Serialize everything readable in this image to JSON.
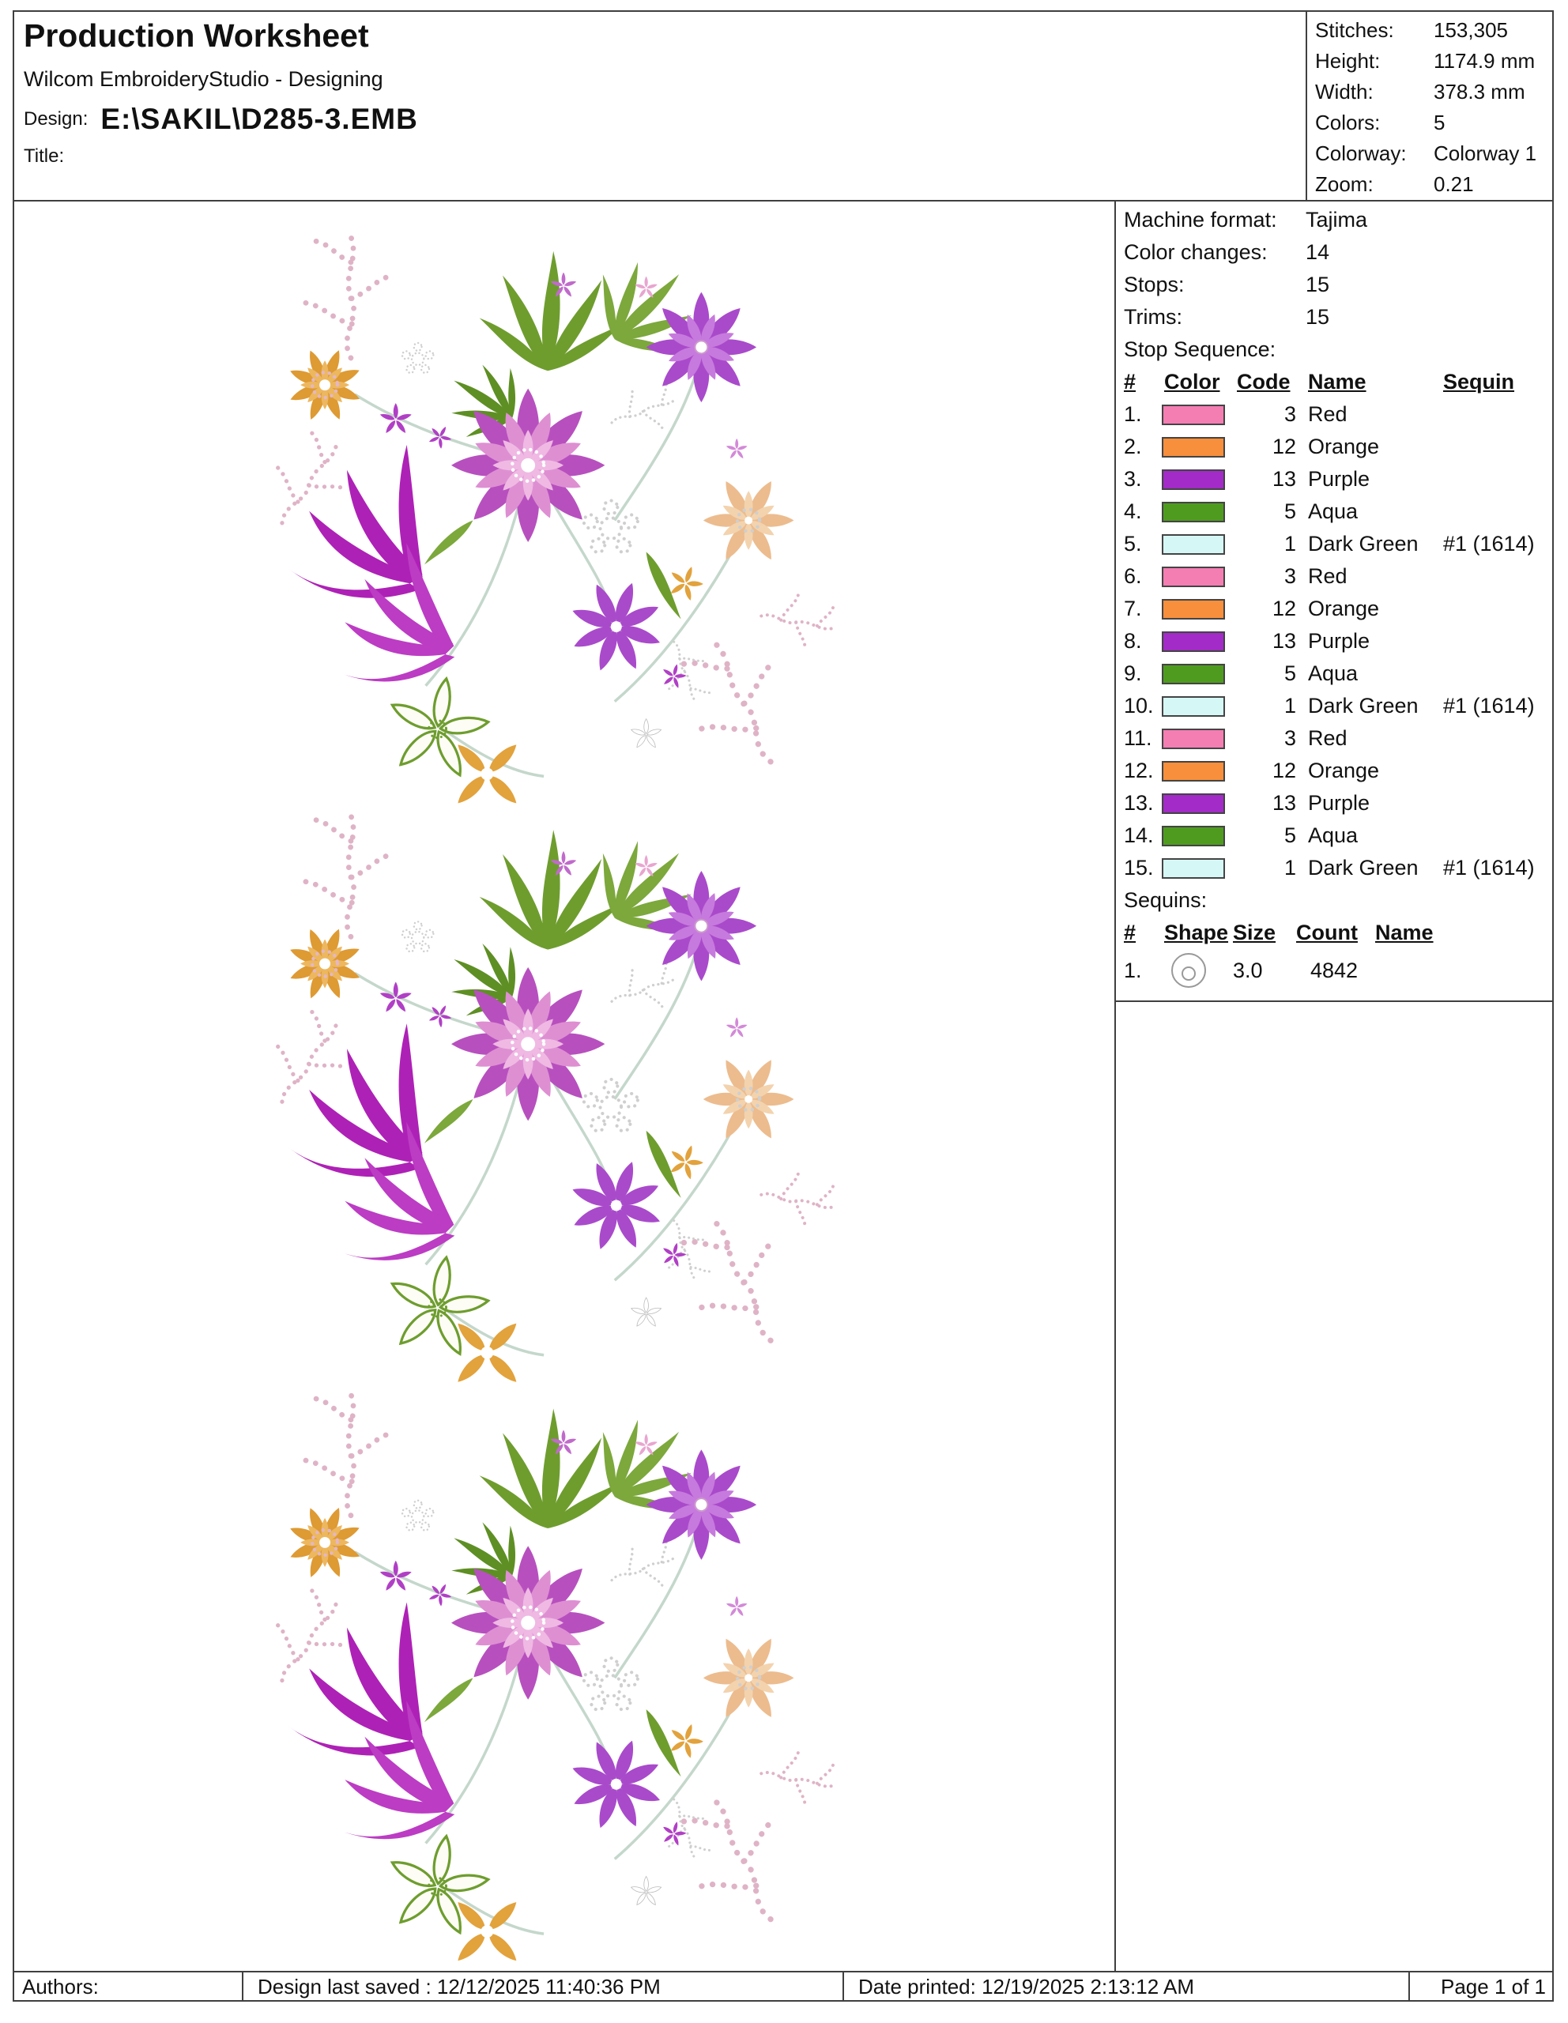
{
  "header": {
    "title": "Production Worksheet",
    "subtitle": "Wilcom EmbroideryStudio - Designing",
    "design_label": "Design:",
    "design_path": "E:\\SAKIL\\D285-3.EMB",
    "title_label": "Title:"
  },
  "summary": {
    "rows": [
      {
        "label": "Stitches:",
        "value": "153,305"
      },
      {
        "label": "Height:",
        "value": "1174.9 mm"
      },
      {
        "label": "Width:",
        "value": "378.3 mm"
      },
      {
        "label": "Colors:",
        "value": "5"
      },
      {
        "label": "Colorway:",
        "value": "Colorway 1"
      },
      {
        "label": "Zoom:",
        "value": "0.21"
      }
    ]
  },
  "machine": {
    "rows": [
      {
        "label": "Machine format:",
        "value": "Tajima"
      },
      {
        "label": "Color changes:",
        "value": "14"
      },
      {
        "label": "Stops:",
        "value": "15"
      },
      {
        "label": "Trims:",
        "value": "15"
      }
    ]
  },
  "stop_sequence": {
    "title": "Stop Sequence:",
    "headers": {
      "num": "#",
      "color": "Color",
      "code": "Code",
      "name": "Name",
      "sequin": "Sequin"
    },
    "rows": [
      {
        "num": "1.",
        "color": "#F47EB2",
        "code": "3",
        "name": "Red",
        "sequin": ""
      },
      {
        "num": "2.",
        "color": "#F78F3C",
        "code": "12",
        "name": "Orange",
        "sequin": ""
      },
      {
        "num": "3.",
        "color": "#A32BC8",
        "code": "13",
        "name": "Purple",
        "sequin": ""
      },
      {
        "num": "4.",
        "color": "#4F9B1F",
        "code": "5",
        "name": "Aqua",
        "sequin": ""
      },
      {
        "num": "5.",
        "color": "#D5F8F6",
        "code": "1",
        "name": "Dark Green",
        "sequin": "#1 (1614)"
      },
      {
        "num": "6.",
        "color": "#F47EB2",
        "code": "3",
        "name": "Red",
        "sequin": ""
      },
      {
        "num": "7.",
        "color": "#F78F3C",
        "code": "12",
        "name": "Orange",
        "sequin": ""
      },
      {
        "num": "8.",
        "color": "#A32BC8",
        "code": "13",
        "name": "Purple",
        "sequin": ""
      },
      {
        "num": "9.",
        "color": "#4F9B1F",
        "code": "5",
        "name": "Aqua",
        "sequin": ""
      },
      {
        "num": "10.",
        "color": "#D5F8F6",
        "code": "1",
        "name": "Dark Green",
        "sequin": "#1 (1614)"
      },
      {
        "num": "11.",
        "color": "#F47EB2",
        "code": "3",
        "name": "Red",
        "sequin": ""
      },
      {
        "num": "12.",
        "color": "#F78F3C",
        "code": "12",
        "name": "Orange",
        "sequin": ""
      },
      {
        "num": "13.",
        "color": "#A32BC8",
        "code": "13",
        "name": "Purple",
        "sequin": ""
      },
      {
        "num": "14.",
        "color": "#4F9B1F",
        "code": "5",
        "name": "Aqua",
        "sequin": ""
      },
      {
        "num": "15.",
        "color": "#D5F8F6",
        "code": "1",
        "name": "Dark Green",
        "sequin": "#1 (1614)"
      }
    ]
  },
  "sequins": {
    "title": "Sequins:",
    "headers": {
      "num": "#",
      "shape": "Shape",
      "size": "Size",
      "count": "Count",
      "name": "Name"
    },
    "rows": [
      {
        "num": "1.",
        "size": "3.0",
        "count": "4842",
        "name": ""
      }
    ]
  },
  "design_preview": {
    "colors": [
      "#DE8FD2",
      "#AE21B6",
      "#A94ACB",
      "#E2A23C",
      "#6E9D2E",
      "#ECBC8E",
      "#DFB3C6"
    ]
  },
  "footer": {
    "authors_label": "Authors:",
    "last_saved": "Design last saved : 12/12/2025 11:40:36 PM",
    "date_printed": "Date printed: 12/19/2025 2:13:12 AM",
    "page": "Page 1 of 1"
  }
}
